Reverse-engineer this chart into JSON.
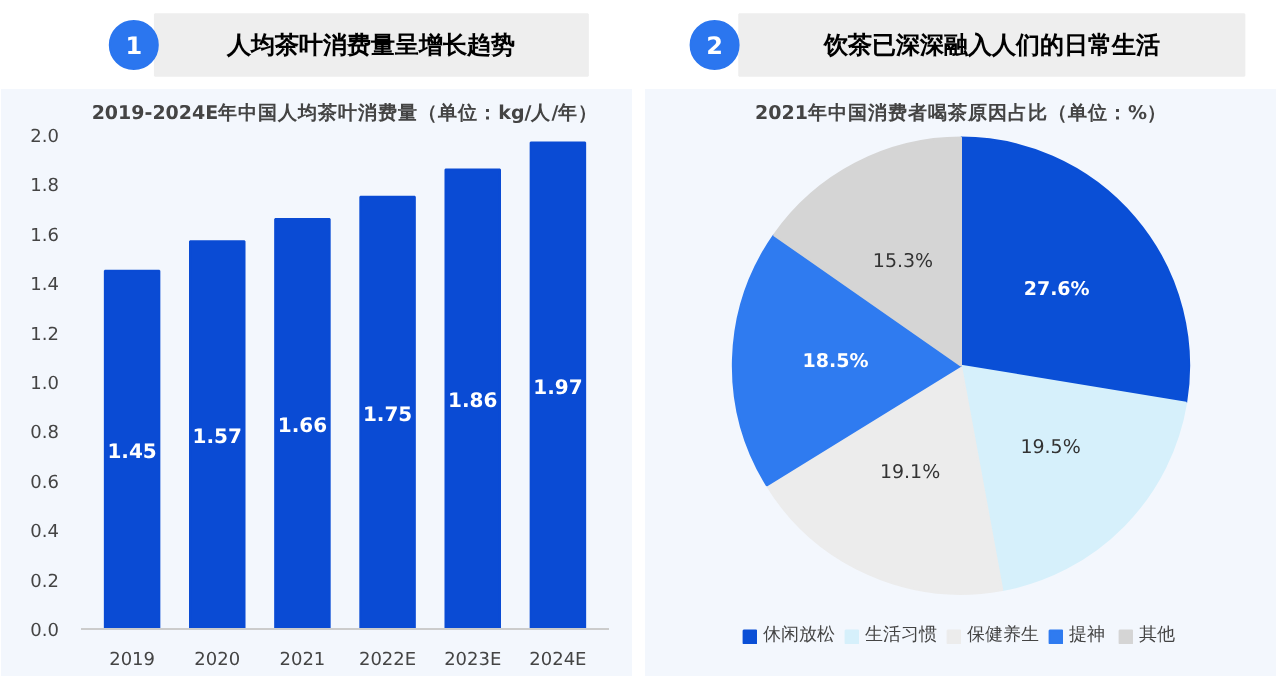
{
  "chart_data": [
    {
      "type": "bar",
      "annotations": [
        "1"
      ],
      "title": "人均茶叶消费量呈增长趋势",
      "subtitle": "2019-2024E年中国人均茶叶消费量（单位：kg/人/年）",
      "categories": [
        "2019",
        "2020",
        "2021",
        "2022E",
        "2023E",
        "2024E"
      ],
      "values": [
        1.45,
        1.57,
        1.66,
        1.75,
        1.86,
        1.97
      ],
      "color": "#0a4bd4",
      "ylim": [
        0,
        2.0
      ],
      "yticks": [
        {
          "value": 0,
          "label": "0.0"
        },
        0.2,
        0.4,
        0.6,
        0.8,
        {
          "value": 1.0,
          "label": "1.0"
        },
        1.2,
        1.4,
        1.6,
        1.8,
        {
          "value": 2.0,
          "label": "2.0"
        }
      ],
      "grid": false,
      "data_labels": true
    },
    {
      "type": "pie",
      "annotations": [
        "2"
      ],
      "title": "饮茶已深深融入人们的日常生活",
      "subtitle": "2021年中国消费者喝茶原因占比（单位：%）",
      "categories": [
        "休闲放松",
        "生活习惯",
        "保健养生",
        "提神",
        "其他"
      ],
      "values": [
        27.6,
        19.5,
        19.1,
        18.5,
        15.3
      ],
      "colors": [
        "#0a4fd6",
        "#d6f0fb",
        "#ececec",
        "#2f7bf0",
        "#d5d5d5"
      ],
      "value_labels": [
        "27.6%",
        "19.5%",
        "19.1%",
        "18.5%",
        "15.3%"
      ],
      "legend": "bottom"
    }
  ]
}
